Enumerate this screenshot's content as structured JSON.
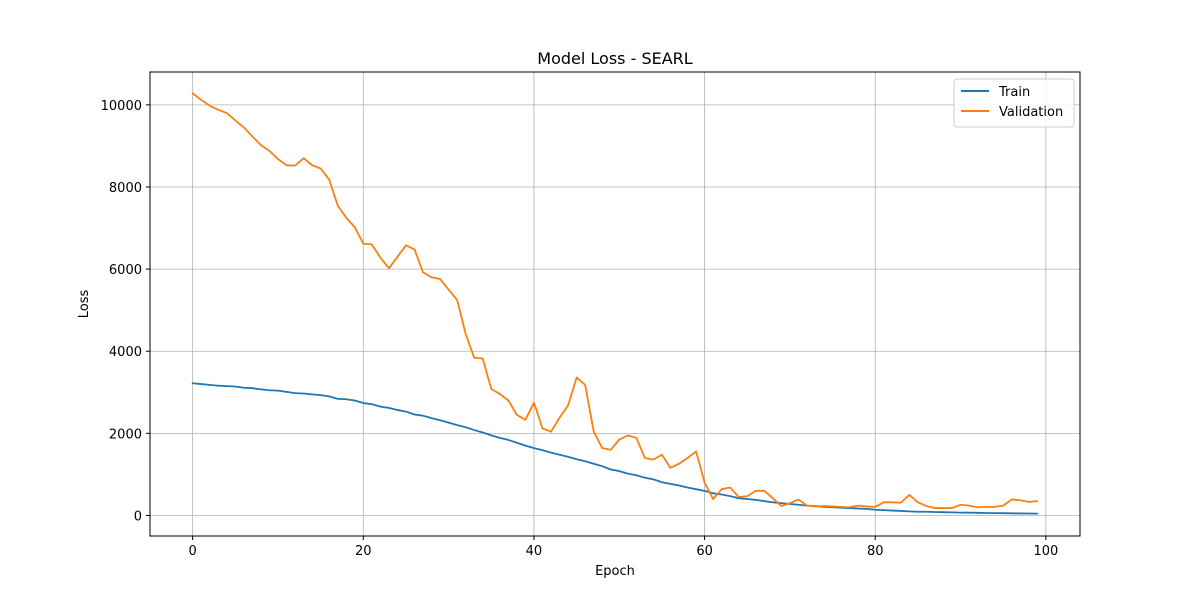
{
  "chart_data": {
    "type": "line",
    "title": "Model Loss - SEARL",
    "xlabel": "Epoch",
    "ylabel": "Loss",
    "xlim": [
      -5,
      104
    ],
    "ylim": [
      -500,
      10800
    ],
    "xticks": [
      0,
      20,
      40,
      60,
      80,
      100
    ],
    "yticks": [
      0,
      2000,
      4000,
      6000,
      8000,
      10000
    ],
    "grid": true,
    "legend_position": "top-right",
    "series": [
      {
        "name": "Train",
        "color": "#1f77b4",
        "x": [
          0,
          1,
          2,
          3,
          4,
          5,
          6,
          7,
          8,
          9,
          10,
          11,
          12,
          13,
          14,
          15,
          16,
          17,
          18,
          19,
          20,
          21,
          22,
          23,
          24,
          25,
          26,
          27,
          28,
          29,
          30,
          31,
          32,
          33,
          34,
          35,
          36,
          37,
          38,
          39,
          40,
          41,
          42,
          43,
          44,
          45,
          46,
          47,
          48,
          49,
          50,
          51,
          52,
          53,
          54,
          55,
          56,
          57,
          58,
          59,
          60,
          61,
          62,
          63,
          64,
          65,
          66,
          67,
          68,
          69,
          70,
          71,
          72,
          73,
          74,
          75,
          76,
          77,
          78,
          79,
          80,
          81,
          82,
          83,
          84,
          85,
          86,
          87,
          88,
          89,
          90,
          91,
          92,
          93,
          94,
          95,
          96,
          97,
          98,
          99
        ],
        "values": [
          3220,
          3200,
          3180,
          3160,
          3150,
          3140,
          3110,
          3100,
          3070,
          3050,
          3040,
          3010,
          2980,
          2970,
          2950,
          2930,
          2900,
          2840,
          2830,
          2800,
          2740,
          2710,
          2650,
          2620,
          2570,
          2530,
          2460,
          2430,
          2370,
          2320,
          2260,
          2200,
          2150,
          2080,
          2020,
          1950,
          1890,
          1840,
          1770,
          1700,
          1640,
          1590,
          1530,
          1480,
          1430,
          1370,
          1320,
          1260,
          1200,
          1120,
          1080,
          1020,
          980,
          920,
          880,
          810,
          770,
          730,
          680,
          640,
          600,
          540,
          510,
          470,
          420,
          400,
          380,
          350,
          320,
          300,
          280,
          260,
          240,
          230,
          210,
          200,
          190,
          180,
          170,
          160,
          140,
          130,
          120,
          110,
          100,
          90,
          90,
          85,
          80,
          75,
          70,
          68,
          65,
          60,
          58,
          55,
          52,
          50,
          48,
          45
        ],
        "label_color": "#000000"
      },
      {
        "name": "Validation",
        "color": "#ff7f0e",
        "x": [
          0,
          1,
          2,
          3,
          4,
          5,
          6,
          7,
          8,
          9,
          10,
          11,
          12,
          13,
          14,
          15,
          16,
          17,
          18,
          19,
          20,
          21,
          22,
          23,
          24,
          25,
          26,
          27,
          28,
          29,
          30,
          31,
          32,
          33,
          34,
          35,
          36,
          37,
          38,
          39,
          40,
          41,
          42,
          43,
          44,
          45,
          46,
          47,
          48,
          49,
          50,
          51,
          52,
          53,
          54,
          55,
          56,
          57,
          58,
          59,
          60,
          61,
          62,
          63,
          64,
          65,
          66,
          67,
          68,
          69,
          70,
          71,
          72,
          73,
          74,
          75,
          76,
          77,
          78,
          79,
          80,
          81,
          82,
          83,
          84,
          85,
          86,
          87,
          88,
          89,
          90,
          91,
          92,
          93,
          94,
          95,
          96,
          97,
          98,
          99
        ],
        "values": [
          10280,
          10120,
          9980,
          9880,
          9800,
          9620,
          9450,
          9230,
          9020,
          8880,
          8680,
          8530,
          8520,
          8700,
          8530,
          8450,
          8180,
          7550,
          7250,
          7020,
          6620,
          6600,
          6280,
          6020,
          6300,
          6580,
          6480,
          5920,
          5800,
          5760,
          5500,
          5250,
          4420,
          3840,
          3820,
          3080,
          2960,
          2800,
          2450,
          2330,
          2750,
          2120,
          2040,
          2380,
          2680,
          3360,
          3180,
          2050,
          1640,
          1600,
          1850,
          1950,
          1890,
          1400,
          1360,
          1480,
          1160,
          1260,
          1400,
          1560,
          800,
          400,
          640,
          680,
          450,
          470,
          600,
          600,
          420,
          230,
          300,
          390,
          240,
          220,
          230,
          220,
          210,
          200,
          240,
          220,
          210,
          320,
          320,
          310,
          500,
          320,
          230,
          180,
          180,
          180,
          260,
          240,
          200,
          210,
          210,
          240,
          390,
          370,
          330,
          350
        ]
      }
    ]
  }
}
